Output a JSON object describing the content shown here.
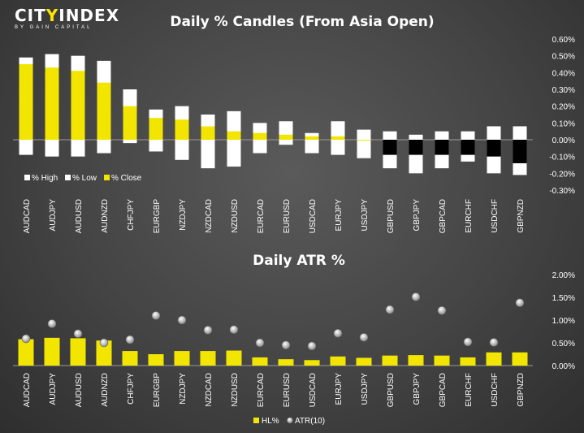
{
  "logo": {
    "main_pre": "CIT",
    "main_y": "Y",
    "main_post": "INDEX",
    "sub": "BY GAIN CAPITAL"
  },
  "colors": {
    "close": "#f2e600",
    "range": "#ffffff",
    "negative_close": "#000000",
    "atr_marker": "#dcdcdc"
  },
  "chart_data": [
    {
      "type": "bar",
      "title": "Daily % Candles (From Asia Open)",
      "categories": [
        "AUDCAD",
        "AUDJPY",
        "AUDUSD",
        "AUDNZD",
        "CHFJPY",
        "EURGBP",
        "NZDJPY",
        "NZDCAD",
        "NZDUSD",
        "EURCAD",
        "EURUSD",
        "USDCAD",
        "EURJPY",
        "USDJPY",
        "GBPUSD",
        "GBPJPY",
        "GBPCAD",
        "EURCHF",
        "USDCHF",
        "GBPNZD"
      ],
      "series": [
        {
          "name": "% High",
          "values": [
            0.49,
            0.51,
            0.5,
            0.47,
            0.3,
            0.18,
            0.2,
            0.15,
            0.17,
            0.1,
            0.11,
            0.04,
            0.11,
            0.06,
            0.05,
            0.03,
            0.05,
            0.05,
            0.08,
            0.08
          ]
        },
        {
          "name": "% Low",
          "values": [
            -0.09,
            -0.1,
            -0.1,
            -0.08,
            -0.02,
            -0.07,
            -0.12,
            -0.17,
            -0.16,
            -0.08,
            -0.03,
            -0.08,
            -0.09,
            -0.11,
            -0.17,
            -0.2,
            -0.17,
            -0.13,
            -0.2,
            -0.21
          ]
        },
        {
          "name": "% Close",
          "values": [
            0.45,
            0.43,
            0.41,
            0.34,
            0.2,
            0.13,
            0.12,
            0.08,
            0.05,
            0.04,
            0.03,
            0.02,
            0.02,
            0.0,
            -0.09,
            -0.09,
            -0.09,
            -0.09,
            -0.1,
            -0.14
          ]
        }
      ],
      "ylim": [
        -0.3,
        0.6
      ],
      "yticks": [
        "0.60%",
        "0.50%",
        "0.40%",
        "0.30%",
        "0.20%",
        "0.10%",
        "0.00%",
        "-0.10%",
        "-0.20%",
        "-0.30%"
      ],
      "legend": "bottom-left"
    },
    {
      "type": "bar",
      "title": "Daily ATR %",
      "categories": [
        "AUDCAD",
        "AUDJPY",
        "AUDUSD",
        "AUDNZD",
        "CHFJPY",
        "EURGBP",
        "NZDJPY",
        "NZDCAD",
        "NZDUSD",
        "EURCAD",
        "EURUSD",
        "USDCAD",
        "EURJPY",
        "USDJPY",
        "GBPUSD",
        "GBPJPY",
        "GBPCAD",
        "EURCHF",
        "USDCHF",
        "GBPNZD"
      ],
      "series": [
        {
          "name": "HL%",
          "values": [
            0.58,
            0.61,
            0.6,
            0.55,
            0.32,
            0.25,
            0.32,
            0.32,
            0.33,
            0.18,
            0.14,
            0.12,
            0.2,
            0.17,
            0.22,
            0.23,
            0.22,
            0.18,
            0.29,
            0.29
          ]
        },
        {
          "name": "ATR(10)",
          "values": [
            0.59,
            0.92,
            0.7,
            0.5,
            0.57,
            1.1,
            1.0,
            0.78,
            0.79,
            0.5,
            0.45,
            0.43,
            0.71,
            0.62,
            1.23,
            1.51,
            1.21,
            0.52,
            0.51,
            1.38
          ]
        }
      ],
      "ylim": [
        0,
        2.0
      ],
      "yticks": [
        "2.00%",
        "1.50%",
        "1.00%",
        "0.50%",
        "0.00%"
      ],
      "legend": "bottom-center"
    }
  ]
}
